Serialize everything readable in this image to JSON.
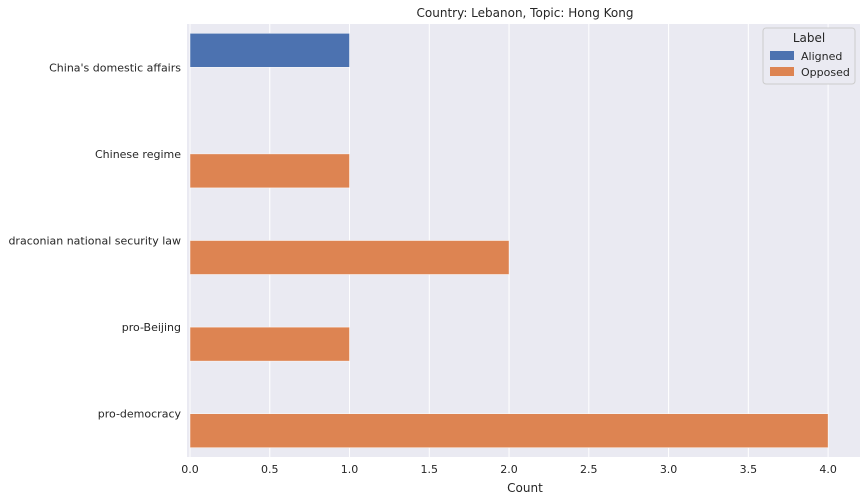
{
  "chart_data": {
    "type": "bar",
    "orientation": "horizontal",
    "title": "Country: Lebanon, Topic: Hong Kong",
    "xlabel": "Count",
    "ylabel": "",
    "xlim": [
      0,
      4.2
    ],
    "xticks": [
      "0.0",
      "0.5",
      "1.0",
      "1.5",
      "2.0",
      "2.5",
      "3.0",
      "3.5",
      "4.0"
    ],
    "grid": true,
    "legend": {
      "title": "Label",
      "placement": "top-right"
    },
    "categories": [
      "China's domestic affairs",
      "Chinese regime",
      "draconian national security law",
      "pro-Beijing",
      "pro-democracy"
    ],
    "series": [
      {
        "name": "Aligned",
        "color": "#4c72b0",
        "values": [
          1,
          0,
          0,
          0,
          0
        ]
      },
      {
        "name": "Opposed",
        "color": "#dd8452",
        "values": [
          0,
          1,
          2,
          1,
          4
        ]
      }
    ],
    "colors": {
      "background": "#eaeaf2",
      "grid": "#ffffff",
      "text": "#262626"
    }
  }
}
